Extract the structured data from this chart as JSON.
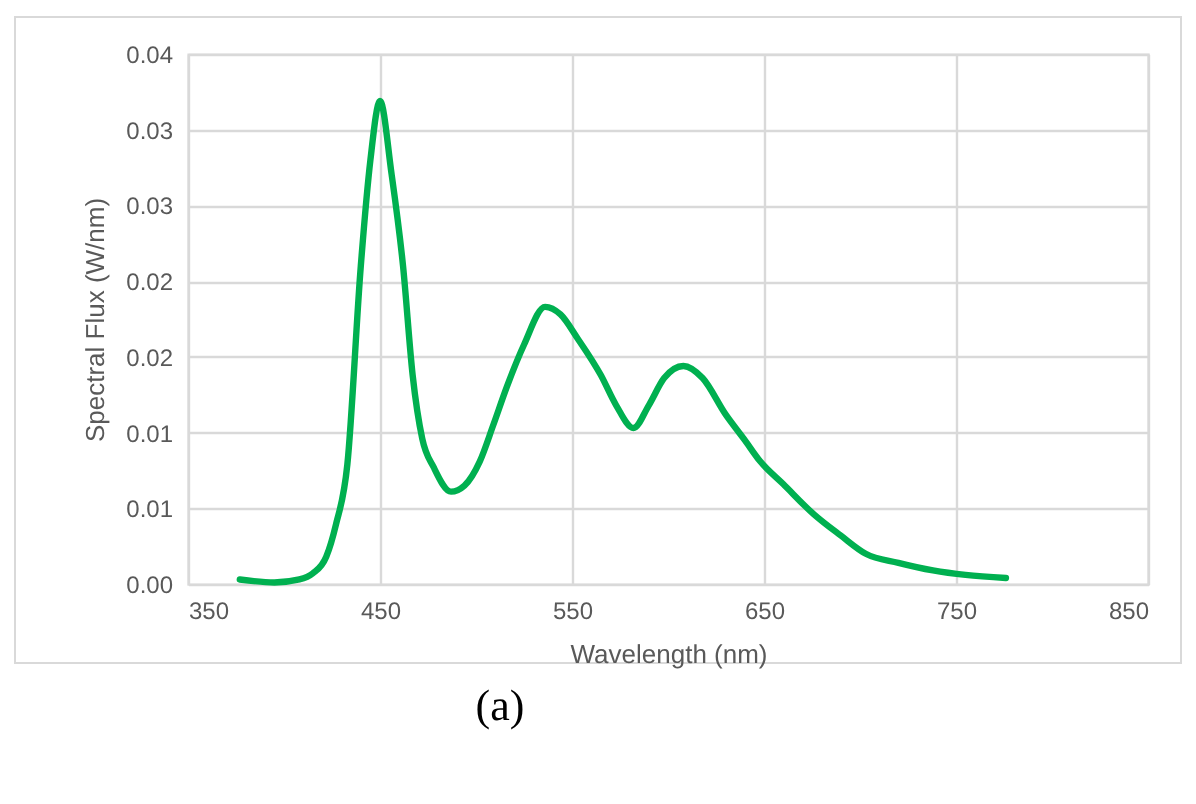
{
  "chart_data": {
    "type": "line",
    "xlabel": "Wavelength (nm)",
    "ylabel": "Spectral Flux (W/nm)",
    "x": [
      377,
      395,
      408,
      415,
      422,
      427,
      433,
      440,
      445,
      450,
      456,
      462,
      467,
      472,
      478,
      487,
      494,
      502,
      509,
      516,
      525,
      536,
      544,
      553,
      565,
      573,
      582,
      590,
      598,
      608,
      618,
      630,
      640,
      648,
      660,
      676,
      690,
      703,
      720,
      738,
      755,
      776
    ],
    "series": [
      {
        "color": "#00b050",
        "values": [
          0.0003,
          0.0001,
          0.0003,
          0.0007,
          0.0018,
          0.0039,
          0.0079,
          0.021,
          0.028,
          0.0319,
          0.0271,
          0.021,
          0.0138,
          0.0096,
          0.0077,
          0.0061,
          0.0065,
          0.0081,
          0.0105,
          0.013,
          0.0158,
          0.0183,
          0.0178,
          0.0162,
          0.0138,
          0.0118,
          0.0103,
          0.0118,
          0.0136,
          0.0144,
          0.0136,
          0.0112,
          0.0095,
          0.0081,
          0.0066,
          0.0046,
          0.0032,
          0.002,
          0.0014,
          0.0009,
          0.0006,
          0.0004
        ]
      }
    ],
    "xlim": [
      350,
      850
    ],
    "xticks": [
      350,
      450,
      550,
      650,
      750,
      850
    ],
    "ylim": [
      0,
      0.035
    ],
    "yticks": [
      {
        "value": 0,
        "label": "0.00"
      },
      {
        "value": 0.005,
        "label": "0.01"
      },
      {
        "value": 0.01,
        "label": "0.01"
      },
      {
        "value": 0.015,
        "label": "0.02"
      },
      {
        "value": 0.02,
        "label": "0.02"
      },
      {
        "value": 0.025,
        "label": "0.03"
      },
      {
        "value": 0.03,
        "label": "0.03"
      },
      {
        "value": 0.035,
        "label": "0.04"
      }
    ],
    "grid": true,
    "line_style": "solid",
    "marker": "none",
    "annotations": [
      "(a)"
    ]
  }
}
